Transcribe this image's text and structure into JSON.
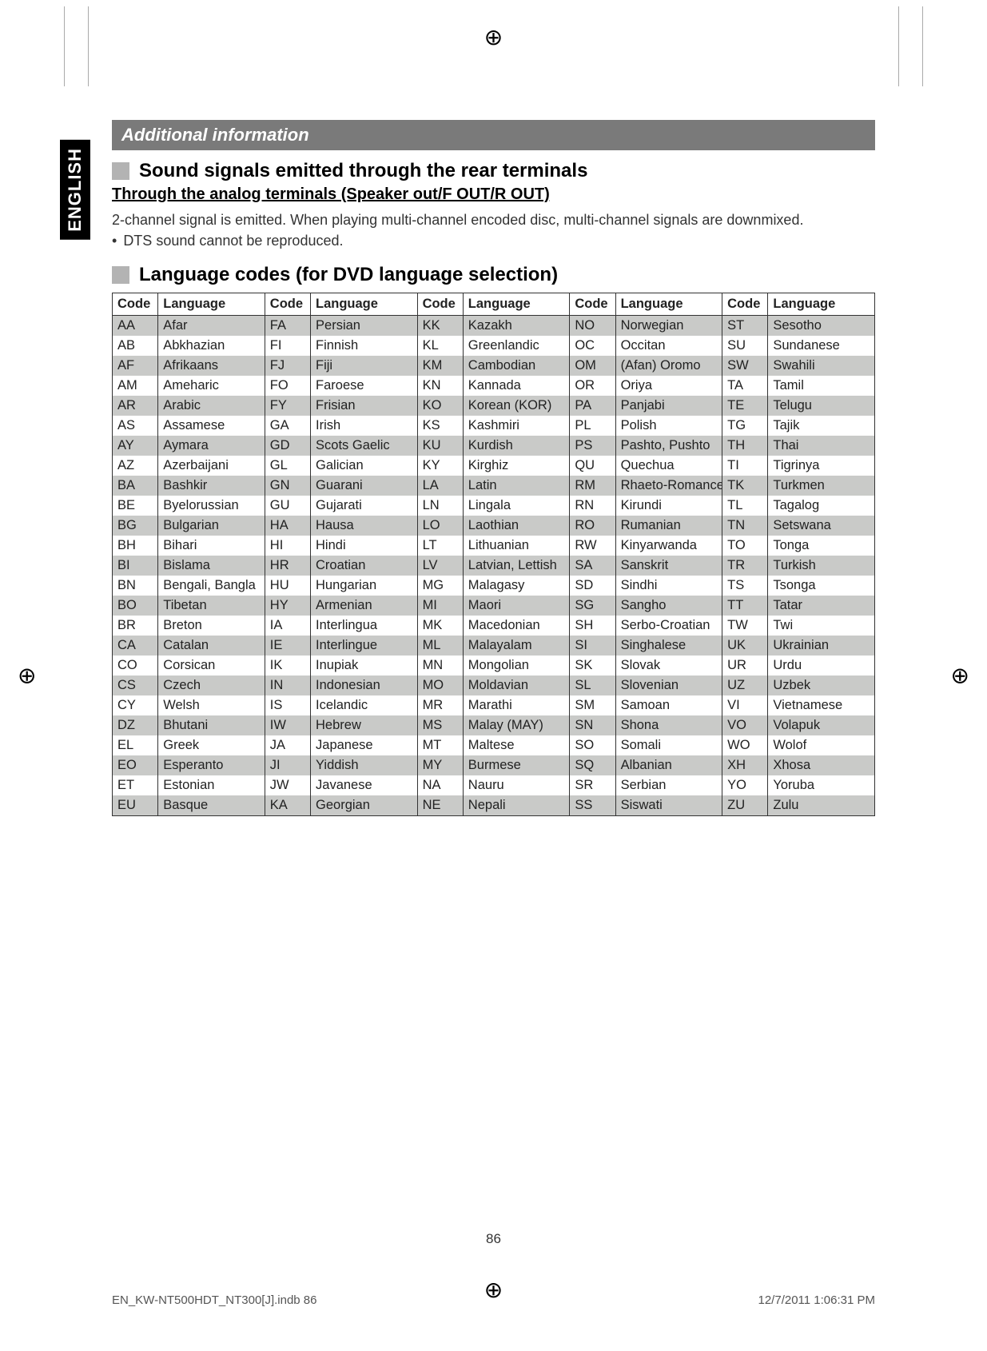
{
  "side_tab": "ENGLISH",
  "banner": "Additional information",
  "section1": {
    "title": "Sound signals emitted through the rear terminals",
    "sub": "Through the analog terminals (Speaker out/F OUT/R OUT)",
    "body": "2-channel signal is emitted. When playing multi-channel encoded disc, multi-channel signals are downmixed.",
    "bullet": "DTS sound cannot be reproduced."
  },
  "section2": {
    "title": "Language codes (for DVD language selection)"
  },
  "table": {
    "headers": [
      "Code",
      "Language",
      "Code",
      "Language",
      "Code",
      "Language",
      "Code",
      "Language",
      "Code",
      "Language"
    ],
    "rows": [
      [
        "AA",
        "Afar",
        "FA",
        "Persian",
        "KK",
        "Kazakh",
        "NO",
        "Norwegian",
        "ST",
        "Sesotho"
      ],
      [
        "AB",
        "Abkhazian",
        "FI",
        "Finnish",
        "KL",
        "Greenlandic",
        "OC",
        "Occitan",
        "SU",
        "Sundanese"
      ],
      [
        "AF",
        "Afrikaans",
        "FJ",
        "Fiji",
        "KM",
        "Cambodian",
        "OM",
        "(Afan) Oromo",
        "SW",
        "Swahili"
      ],
      [
        "AM",
        "Ameharic",
        "FO",
        "Faroese",
        "KN",
        "Kannada",
        "OR",
        "Oriya",
        "TA",
        "Tamil"
      ],
      [
        "AR",
        "Arabic",
        "FY",
        "Frisian",
        "KO",
        "Korean (KOR)",
        "PA",
        "Panjabi",
        "TE",
        "Telugu"
      ],
      [
        "AS",
        "Assamese",
        "GA",
        "Irish",
        "KS",
        "Kashmiri",
        "PL",
        "Polish",
        "TG",
        "Tajik"
      ],
      [
        "AY",
        "Aymara",
        "GD",
        "Scots Gaelic",
        "KU",
        "Kurdish",
        "PS",
        "Pashto, Pushto",
        "TH",
        "Thai"
      ],
      [
        "AZ",
        "Azerbaijani",
        "GL",
        "Galician",
        "KY",
        "Kirghiz",
        "QU",
        "Quechua",
        "TI",
        "Tigrinya"
      ],
      [
        "BA",
        "Bashkir",
        "GN",
        "Guarani",
        "LA",
        "Latin",
        "RM",
        "Rhaeto-Romance",
        "TK",
        "Turkmen"
      ],
      [
        "BE",
        "Byelorussian",
        "GU",
        "Gujarati",
        "LN",
        "Lingala",
        "RN",
        "Kirundi",
        "TL",
        "Tagalog"
      ],
      [
        "BG",
        "Bulgarian",
        "HA",
        "Hausa",
        "LO",
        "Laothian",
        "RO",
        "Rumanian",
        "TN",
        "Setswana"
      ],
      [
        "BH",
        "Bihari",
        "HI",
        "Hindi",
        "LT",
        "Lithuanian",
        "RW",
        "Kinyarwanda",
        "TO",
        "Tonga"
      ],
      [
        "BI",
        "Bislama",
        "HR",
        "Croatian",
        "LV",
        "Latvian, Lettish",
        "SA",
        "Sanskrit",
        "TR",
        "Turkish"
      ],
      [
        "BN",
        "Bengali, Bangla",
        "HU",
        "Hungarian",
        "MG",
        "Malagasy",
        "SD",
        "Sindhi",
        "TS",
        "Tsonga"
      ],
      [
        "BO",
        "Tibetan",
        "HY",
        "Armenian",
        "MI",
        "Maori",
        "SG",
        "Sangho",
        "TT",
        "Tatar"
      ],
      [
        "BR",
        "Breton",
        "IA",
        "Interlingua",
        "MK",
        "Macedonian",
        "SH",
        "Serbo-Croatian",
        "TW",
        "Twi"
      ],
      [
        "CA",
        "Catalan",
        "IE",
        "Interlingue",
        "ML",
        "Malayalam",
        "SI",
        "Singhalese",
        "UK",
        "Ukrainian"
      ],
      [
        "CO",
        "Corsican",
        "IK",
        "Inupiak",
        "MN",
        "Mongolian",
        "SK",
        "Slovak",
        "UR",
        "Urdu"
      ],
      [
        "CS",
        "Czech",
        "IN",
        "Indonesian",
        "MO",
        "Moldavian",
        "SL",
        "Slovenian",
        "UZ",
        "Uzbek"
      ],
      [
        "CY",
        "Welsh",
        "IS",
        "Icelandic",
        "MR",
        "Marathi",
        "SM",
        "Samoan",
        "VI",
        "Vietnamese"
      ],
      [
        "DZ",
        "Bhutani",
        "IW",
        "Hebrew",
        "MS",
        "Malay (MAY)",
        "SN",
        "Shona",
        "VO",
        "Volapuk"
      ],
      [
        "EL",
        "Greek",
        "JA",
        "Japanese",
        "MT",
        "Maltese",
        "SO",
        "Somali",
        "WO",
        "Wolof"
      ],
      [
        "EO",
        "Esperanto",
        "JI",
        "Yiddish",
        "MY",
        "Burmese",
        "SQ",
        "Albanian",
        "XH",
        "Xhosa"
      ],
      [
        "ET",
        "Estonian",
        "JW",
        "Javanese",
        "NA",
        "Nauru",
        "SR",
        "Serbian",
        "YO",
        "Yoruba"
      ],
      [
        "EU",
        "Basque",
        "KA",
        "Georgian",
        "NE",
        "Nepali",
        "SS",
        "Siswati",
        "ZU",
        "Zulu"
      ]
    ],
    "shaded_color": "#c9cac8"
  },
  "page_number": "86",
  "footer_left": "EN_KW-NT500HDT_NT300[J].indb   86",
  "footer_right": "12/7/2011   1:06:31 PM",
  "reg_mark": "⊕"
}
